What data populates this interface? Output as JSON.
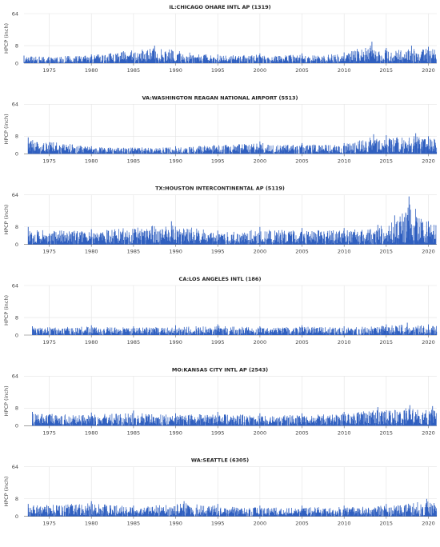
{
  "colors": {
    "bars": "#2f5fc0",
    "grid": "#e3e3e3",
    "axis": "#666666",
    "text": "#444444",
    "title": "#222222"
  },
  "chart_data": [
    {
      "type": "bar",
      "title": "IL:CHICAGO OHARE INTL AP (1319)",
      "ylabel": "HPCP (inch)",
      "y_scale": "sqrt",
      "yticks": [
        0,
        8,
        64
      ],
      "ylim": [
        0,
        64
      ],
      "xlim": [
        1972,
        2021
      ],
      "xticks": [
        1975,
        1980,
        1985,
        1990,
        1995,
        2000,
        2005,
        2010,
        2015,
        2020
      ],
      "grid": true,
      "series": [
        {
          "x": [
            1972,
            1980,
            1987.5,
            1995,
            2000,
            2005,
            2010,
            2013.3,
            2015,
            2018,
            2020
          ],
          "values": [
            1.5,
            2,
            8,
            2,
            2.5,
            2.5,
            3,
            12,
            6,
            8,
            7
          ]
        }
      ]
    },
    {
      "type": "bar",
      "title": "VA:WASHINGTON REAGAN NATIONAL AIRPORT (5513)",
      "ylabel": "HPCP (inch)",
      "y_scale": "sqrt",
      "yticks": [
        0,
        8,
        64
      ],
      "ylim": [
        0,
        64
      ],
      "xlim": [
        1972,
        2021
      ],
      "xticks": [
        1975,
        1980,
        1985,
        1990,
        1995,
        2000,
        2005,
        2010,
        2015,
        2020
      ],
      "grid": true,
      "series": [
        {
          "x": [
            1972.5,
            1980,
            1990,
            2000,
            2005,
            2010,
            2013.5,
            2015,
            2018.5,
            2020
          ],
          "values": [
            7,
            1.5,
            1.5,
            4,
            3,
            3,
            10,
            9,
            11,
            8
          ]
        }
      ]
    },
    {
      "type": "bar",
      "title": "TX:HOUSTON INTERCONTINENTAL AP (5119)",
      "ylabel": "HPCP (inch)",
      "y_scale": "sqrt",
      "yticks": [
        0,
        8,
        64
      ],
      "ylim": [
        0,
        64
      ],
      "xlim": [
        1972,
        2021
      ],
      "xticks": [
        1975,
        1980,
        1985,
        1990,
        1995,
        2000,
        2005,
        2010,
        2015,
        2020
      ],
      "grid": true,
      "series": [
        {
          "x": [
            1972.5,
            1980,
            1989.5,
            1995,
            2000,
            2005,
            2010,
            2014,
            2016,
            2017.7,
            2020
          ],
          "values": [
            8,
            6,
            14,
            5,
            8,
            7,
            7,
            10,
            22,
            60,
            14
          ]
        }
      ]
    },
    {
      "type": "bar",
      "title": "CA:LOS ANGELES INTL (186)",
      "ylabel": "HPCP (inch)",
      "y_scale": "sqrt",
      "yticks": [
        0,
        8,
        64
      ],
      "ylim": [
        0,
        64
      ],
      "xlim": [
        1972,
        2021
      ],
      "xticks": [
        1975,
        1980,
        1985,
        1990,
        1995,
        2000,
        2005,
        2010,
        2015,
        2020
      ],
      "grid": true,
      "series": [
        {
          "x": [
            1973,
            1980,
            1985,
            1990,
            1995,
            2000,
            2005,
            2010,
            2015,
            2017.5,
            2020
          ],
          "values": [
            2,
            2.5,
            2,
            2.5,
            3,
            2,
            2.5,
            2,
            3,
            4,
            3
          ]
        }
      ]
    },
    {
      "type": "bar",
      "title": "MO:KANSAS CITY INTL AP (2543)",
      "ylabel": "HPCP (inch)",
      "y_scale": "sqrt",
      "yticks": [
        0,
        8,
        64
      ],
      "ylim": [
        0,
        64
      ],
      "xlim": [
        1972,
        2021
      ],
      "xticks": [
        1975,
        1980,
        1985,
        1990,
        1995,
        2000,
        2005,
        2010,
        2015,
        2020
      ],
      "grid": true,
      "series": [
        {
          "x": [
            1973,
            1980,
            1985,
            1990,
            1995,
            2000,
            2005,
            2010,
            2014,
            2017.8,
            2020.5
          ],
          "values": [
            5,
            4.5,
            6,
            4,
            5,
            4,
            4,
            5,
            9,
            11,
            10
          ]
        }
      ]
    },
    {
      "type": "bar",
      "title": "WA:SEATTLE (6305)",
      "ylabel": "HPCP (inch)",
      "y_scale": "sqrt",
      "yticks": [
        0,
        8,
        64
      ],
      "ylim": [
        0,
        64
      ],
      "xlim": [
        1972,
        2021
      ],
      "xticks": [
        1975,
        1980,
        1985,
        1990,
        1995,
        2000,
        2005,
        2010,
        2015,
        2020
      ],
      "grid": true,
      "series": [
        {
          "x": [
            1972.5,
            1980,
            1985,
            1991,
            1995,
            2000,
            2005,
            2010,
            2015,
            2019.8
          ],
          "values": [
            4,
            6,
            3,
            6,
            4,
            3,
            3,
            3,
            4,
            8
          ]
        }
      ]
    }
  ]
}
